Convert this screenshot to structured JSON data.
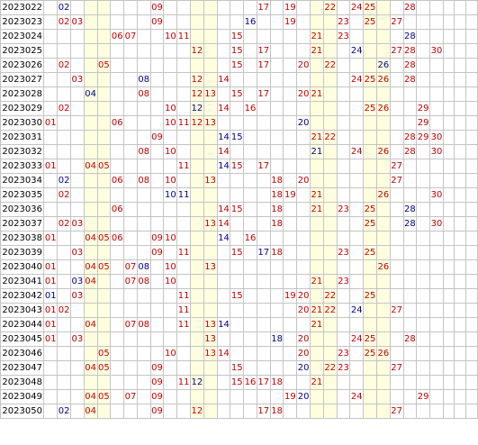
{
  "colors": {
    "red": "#c00000",
    "blue": "#00008b",
    "highlight_column_bg": "#ffffe0",
    "grid_line": "#c4c4c4"
  },
  "highlight_columns": [
    4,
    5,
    12,
    13,
    21,
    22,
    25,
    26
  ],
  "rows": [
    {
      "issue": "2023022",
      "nums": [
        [
          "02",
          "blue"
        ],
        [
          "09",
          "red"
        ],
        [
          "17",
          "red"
        ],
        [
          "19",
          "red"
        ],
        [
          "22",
          "red"
        ],
        [
          "24",
          "red"
        ],
        [
          "25",
          "red"
        ],
        [
          "28",
          "red"
        ]
      ]
    },
    {
      "issue": "2023023",
      "nums": [
        [
          "02",
          "red"
        ],
        [
          "03",
          "red"
        ],
        [
          "09",
          "red"
        ],
        [
          "16",
          "blue"
        ],
        [
          "19",
          "red"
        ],
        [
          "23",
          "red"
        ],
        [
          "25",
          "red"
        ],
        [
          "27",
          "red"
        ]
      ]
    },
    {
      "issue": "2023024",
      "nums": [
        [
          "06",
          "red"
        ],
        [
          "07",
          "red"
        ],
        [
          "10",
          "red"
        ],
        [
          "11",
          "red"
        ],
        [
          "15",
          "red"
        ],
        [
          "21",
          "red"
        ],
        [
          "23",
          "red"
        ],
        [
          "28",
          "blue"
        ]
      ]
    },
    {
      "issue": "2023025",
      "nums": [
        [
          "12",
          "red"
        ],
        [
          "15",
          "red"
        ],
        [
          "17",
          "red"
        ],
        [
          "21",
          "red"
        ],
        [
          "24",
          "blue"
        ],
        [
          "27",
          "red"
        ],
        [
          "28",
          "red"
        ],
        [
          "30",
          "red"
        ]
      ]
    },
    {
      "issue": "2023026",
      "nums": [
        [
          "02",
          "red"
        ],
        [
          "05",
          "red"
        ],
        [
          "15",
          "red"
        ],
        [
          "17",
          "red"
        ],
        [
          "20",
          "red"
        ],
        [
          "22",
          "red"
        ],
        [
          "26",
          "blue"
        ],
        [
          "28",
          "red"
        ]
      ]
    },
    {
      "issue": "2023027",
      "nums": [
        [
          "03",
          "red"
        ],
        [
          "08",
          "blue"
        ],
        [
          "12",
          "red"
        ],
        [
          "14",
          "red"
        ],
        [
          "24",
          "red"
        ],
        [
          "25",
          "red"
        ],
        [
          "26",
          "red"
        ],
        [
          "28",
          "red"
        ]
      ]
    },
    {
      "issue": "2023028",
      "nums": [
        [
          "04",
          "blue"
        ],
        [
          "08",
          "red"
        ],
        [
          "12",
          "red"
        ],
        [
          "13",
          "red"
        ],
        [
          "15",
          "red"
        ],
        [
          "17",
          "red"
        ],
        [
          "20",
          "red"
        ],
        [
          "21",
          "red"
        ]
      ]
    },
    {
      "issue": "2023029",
      "nums": [
        [
          "02",
          "red"
        ],
        [
          "10",
          "red"
        ],
        [
          "12",
          "blue"
        ],
        [
          "14",
          "red"
        ],
        [
          "16",
          "red"
        ],
        [
          "25",
          "red"
        ],
        [
          "26",
          "red"
        ],
        [
          "29",
          "red"
        ]
      ]
    },
    {
      "issue": "2023030",
      "nums": [
        [
          "01",
          "red"
        ],
        [
          "06",
          "red"
        ],
        [
          "10",
          "red"
        ],
        [
          "11",
          "red"
        ],
        [
          "12",
          "red"
        ],
        [
          "13",
          "red"
        ],
        [
          "20",
          "blue"
        ],
        [
          "29",
          "red"
        ]
      ]
    },
    {
      "issue": "2023031",
      "nums": [
        [
          "09",
          "red"
        ],
        [
          "14",
          "blue"
        ],
        [
          "15",
          "blue"
        ],
        [
          "21",
          "red"
        ],
        [
          "22",
          "red"
        ],
        [
          "28",
          "red"
        ],
        [
          "29",
          "red"
        ],
        [
          "30",
          "red"
        ]
      ]
    },
    {
      "issue": "2023032",
      "nums": [
        [
          "08",
          "red"
        ],
        [
          "10",
          "red"
        ],
        [
          "14",
          "red"
        ],
        [
          "21",
          "blue"
        ],
        [
          "24",
          "red"
        ],
        [
          "26",
          "red"
        ],
        [
          "28",
          "red"
        ],
        [
          "30",
          "red"
        ]
      ]
    },
    {
      "issue": "2023033",
      "nums": [
        [
          "01",
          "red"
        ],
        [
          "04",
          "red"
        ],
        [
          "05",
          "red"
        ],
        [
          "11",
          "red"
        ],
        [
          "14",
          "blue"
        ],
        [
          "15",
          "red"
        ],
        [
          "17",
          "red"
        ],
        [
          "27",
          "red"
        ]
      ]
    },
    {
      "issue": "2023034",
      "nums": [
        [
          "02",
          "blue"
        ],
        [
          "06",
          "red"
        ],
        [
          "08",
          "red"
        ],
        [
          "10",
          "red"
        ],
        [
          "13",
          "red"
        ],
        [
          "18",
          "red"
        ],
        [
          "20",
          "red"
        ],
        [
          "27",
          "red"
        ]
      ]
    },
    {
      "issue": "2023035",
      "nums": [
        [
          "02",
          "red"
        ],
        [
          "10",
          "blue"
        ],
        [
          "11",
          "blue"
        ],
        [
          "18",
          "red"
        ],
        [
          "19",
          "red"
        ],
        [
          "21",
          "red"
        ],
        [
          "26",
          "red"
        ],
        [
          "30",
          "red"
        ]
      ]
    },
    {
      "issue": "2023036",
      "nums": [
        [
          "06",
          "red"
        ],
        [
          "14",
          "red"
        ],
        [
          "15",
          "red"
        ],
        [
          "18",
          "red"
        ],
        [
          "21",
          "red"
        ],
        [
          "23",
          "red"
        ],
        [
          "25",
          "red"
        ],
        [
          "28",
          "blue"
        ]
      ]
    },
    {
      "issue": "2023037",
      "nums": [
        [
          "02",
          "red"
        ],
        [
          "03",
          "red"
        ],
        [
          "13",
          "red"
        ],
        [
          "14",
          "red"
        ],
        [
          "18",
          "red"
        ],
        [
          "25",
          "red"
        ],
        [
          "28",
          "blue"
        ],
        [
          "30",
          "red"
        ]
      ]
    },
    {
      "issue": "2023038",
      "nums": [
        [
          "01",
          "red"
        ],
        [
          "04",
          "red"
        ],
        [
          "05",
          "red"
        ],
        [
          "06",
          "red"
        ],
        [
          "09",
          "red"
        ],
        [
          "10",
          "red"
        ],
        [
          "14",
          "blue"
        ],
        [
          "16",
          "red"
        ]
      ]
    },
    {
      "issue": "2023039",
      "nums": [
        [
          "03",
          "red"
        ],
        [
          "09",
          "red"
        ],
        [
          "11",
          "red"
        ],
        [
          "15",
          "red"
        ],
        [
          "17",
          "blue"
        ],
        [
          "18",
          "red"
        ],
        [
          "23",
          "red"
        ],
        [
          "25",
          "red"
        ]
      ]
    },
    {
      "issue": "2023040",
      "nums": [
        [
          "01",
          "red"
        ],
        [
          "04",
          "red"
        ],
        [
          "05",
          "red"
        ],
        [
          "07",
          "red"
        ],
        [
          "08",
          "blue"
        ],
        [
          "10",
          "red"
        ],
        [
          "13",
          "red"
        ],
        [
          "26",
          "red"
        ]
      ]
    },
    {
      "issue": "2023041",
      "nums": [
        [
          "01",
          "red"
        ],
        [
          "03",
          "blue"
        ],
        [
          "04",
          "red"
        ],
        [
          "07",
          "red"
        ],
        [
          "08",
          "red"
        ],
        [
          "10",
          "red"
        ],
        [
          "21",
          "red"
        ],
        [
          "23",
          "red"
        ]
      ]
    },
    {
      "issue": "2023042",
      "nums": [
        [
          "01",
          "blue"
        ],
        [
          "03",
          "red"
        ],
        [
          "11",
          "red"
        ],
        [
          "15",
          "red"
        ],
        [
          "19",
          "red"
        ],
        [
          "20",
          "red"
        ],
        [
          "22",
          "red"
        ],
        [
          "25",
          "red"
        ]
      ]
    },
    {
      "issue": "2023043",
      "nums": [
        [
          "01",
          "red"
        ],
        [
          "02",
          "red"
        ],
        [
          "11",
          "red"
        ],
        [
          "20",
          "red"
        ],
        [
          "21",
          "red"
        ],
        [
          "22",
          "red"
        ],
        [
          "24",
          "blue"
        ],
        [
          "27",
          "red"
        ]
      ]
    },
    {
      "issue": "2023044",
      "nums": [
        [
          "01",
          "red"
        ],
        [
          "04",
          "red"
        ],
        [
          "07",
          "red"
        ],
        [
          "08",
          "red"
        ],
        [
          "11",
          "red"
        ],
        [
          "13",
          "red"
        ],
        [
          "14",
          "blue"
        ],
        [
          "21",
          "red"
        ]
      ]
    },
    {
      "issue": "2023045",
      "nums": [
        [
          "01",
          "red"
        ],
        [
          "03",
          "red"
        ],
        [
          "13",
          "red"
        ],
        [
          "18",
          "blue"
        ],
        [
          "20",
          "red"
        ],
        [
          "24",
          "red"
        ],
        [
          "25",
          "red"
        ],
        [
          "28",
          "red"
        ]
      ]
    },
    {
      "issue": "2023046",
      "nums": [
        [
          "05",
          "red"
        ],
        [
          "10",
          "red"
        ],
        [
          "13",
          "red"
        ],
        [
          "14",
          "red"
        ],
        [
          "20",
          "red"
        ],
        [
          "23",
          "red"
        ],
        [
          "25",
          "red"
        ],
        [
          "26",
          "red"
        ]
      ]
    },
    {
      "issue": "2023047",
      "nums": [
        [
          "04",
          "red"
        ],
        [
          "05",
          "red"
        ],
        [
          "09",
          "red"
        ],
        [
          "15",
          "red"
        ],
        [
          "20",
          "blue"
        ],
        [
          "22",
          "red"
        ],
        [
          "23",
          "red"
        ],
        [
          "27",
          "red"
        ]
      ]
    },
    {
      "issue": "2023048",
      "nums": [
        [
          "09",
          "red"
        ],
        [
          "11",
          "red"
        ],
        [
          "12",
          "blue"
        ],
        [
          "15",
          "red"
        ],
        [
          "16",
          "red"
        ],
        [
          "17",
          "red"
        ],
        [
          "18",
          "red"
        ],
        [
          "21",
          "red"
        ]
      ]
    },
    {
      "issue": "2023049",
      "nums": [
        [
          "04",
          "red"
        ],
        [
          "05",
          "red"
        ],
        [
          "07",
          "red"
        ],
        [
          "09",
          "red"
        ],
        [
          "19",
          "red"
        ],
        [
          "20",
          "blue"
        ],
        [
          "24",
          "red"
        ],
        [
          "29",
          "red"
        ]
      ]
    },
    {
      "issue": "2023050",
      "nums": [
        [
          "02",
          "blue"
        ],
        [
          "04",
          "red"
        ],
        [
          "09",
          "red"
        ],
        [
          "12",
          "red"
        ],
        [
          "17",
          "red"
        ],
        [
          "18",
          "red"
        ],
        [
          "27",
          "red"
        ]
      ]
    }
  ]
}
